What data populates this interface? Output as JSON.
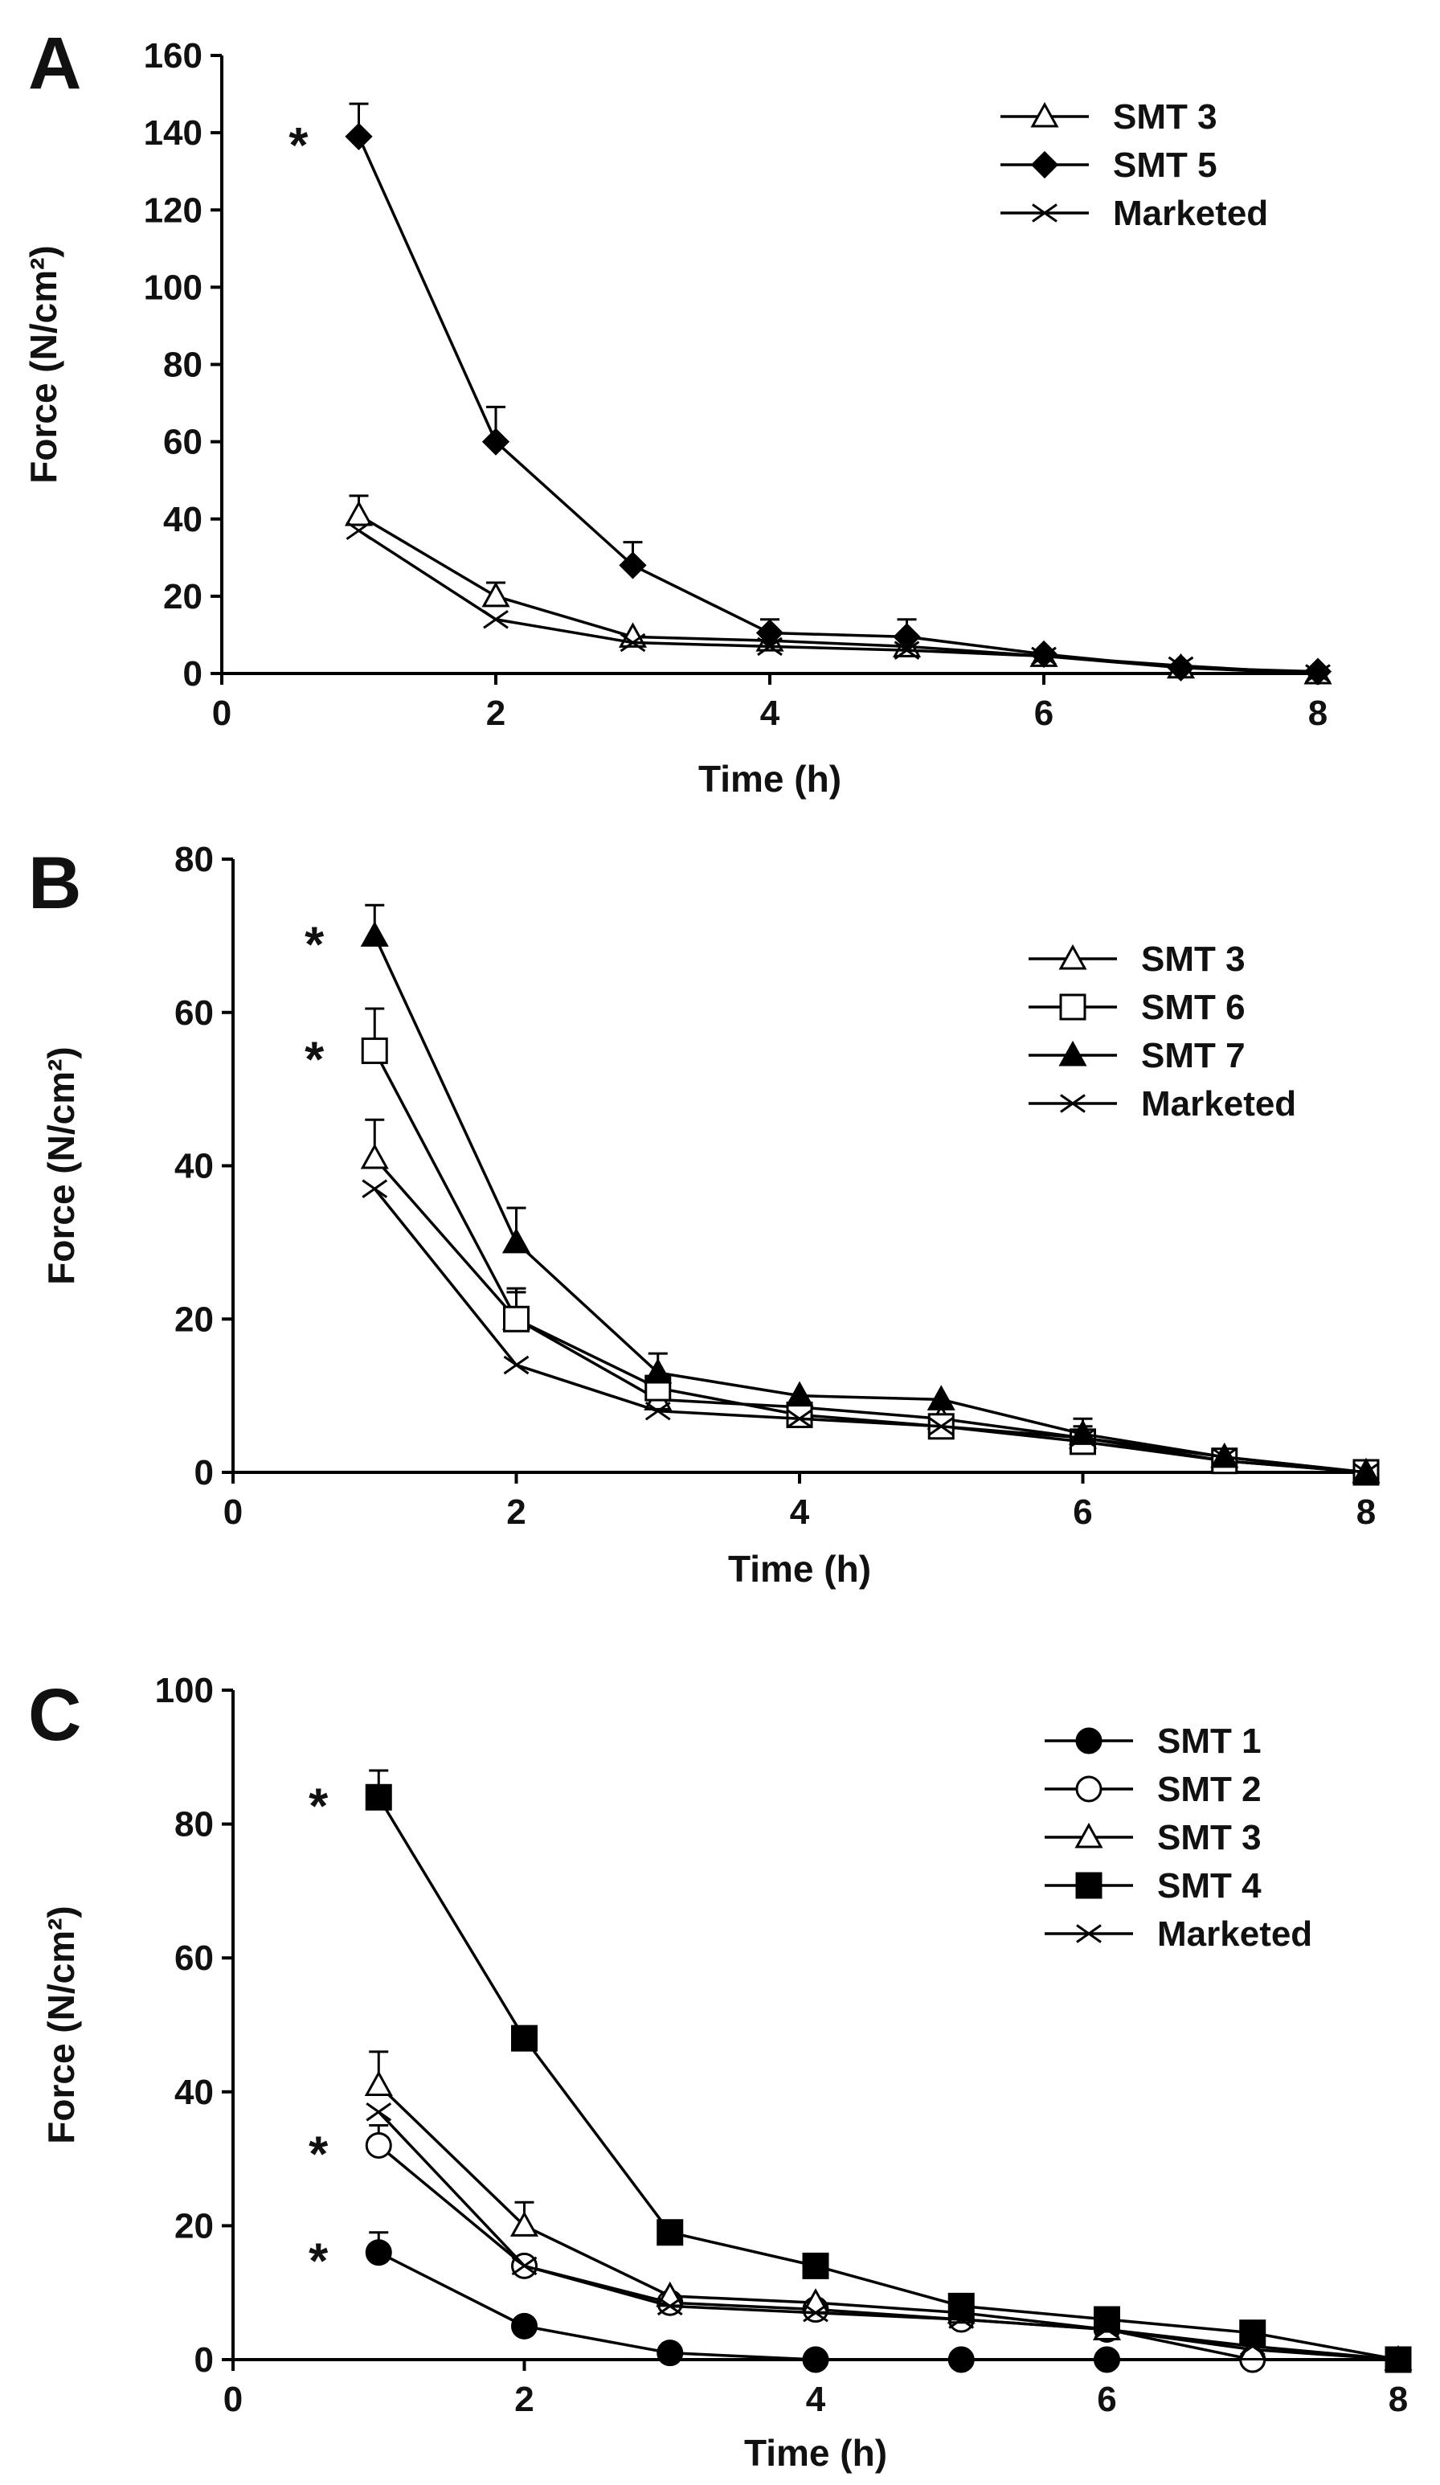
{
  "chart_data": [
    {
      "type": "line",
      "panel_label": "A",
      "xlabel": "Time (h)",
      "ylabel": "Force (N/cm²)",
      "xlim": [
        0,
        8
      ],
      "ylim": [
        0,
        160
      ],
      "x_ticks": [
        0,
        2,
        4,
        6,
        8
      ],
      "y_ticks": [
        0,
        20,
        40,
        60,
        80,
        100,
        120,
        140,
        160
      ],
      "grid": false,
      "legend_position": "top-right",
      "series": [
        {
          "name": "SMT 3",
          "marker": "triangle-open",
          "x": [
            1,
            2,
            3,
            4,
            5,
            6,
            7,
            8
          ],
          "y": [
            41,
            20,
            9.5,
            8.5,
            7,
            4.5,
            1.5,
            0
          ],
          "err": [
            5,
            3.5,
            0,
            0,
            0,
            0,
            0,
            0
          ]
        },
        {
          "name": "SMT 5",
          "marker": "diamond-filled",
          "x": [
            1,
            2,
            3,
            4,
            5,
            6,
            7,
            8
          ],
          "y": [
            139,
            60,
            28,
            10.5,
            9.5,
            5,
            1.5,
            0.5
          ],
          "err": [
            8.5,
            9,
            6,
            3.5,
            4.5,
            0,
            0,
            0
          ]
        },
        {
          "name": "Marketed",
          "marker": "x",
          "x": [
            1,
            2,
            3,
            4,
            5,
            6,
            7,
            8
          ],
          "y": [
            37,
            14,
            8,
            7,
            6,
            4.5,
            2,
            0
          ],
          "err": [
            0,
            0,
            0,
            0,
            0,
            0,
            0,
            0
          ]
        }
      ],
      "annotations": [
        {
          "text": "*",
          "x": 1,
          "y": 139
        }
      ]
    },
    {
      "type": "line",
      "panel_label": "B",
      "xlabel": "Time (h)",
      "ylabel": "Force (N/cm²)",
      "xlim": [
        0,
        8
      ],
      "ylim": [
        0,
        80
      ],
      "x_ticks": [
        0,
        2,
        4,
        6,
        8
      ],
      "y_ticks": [
        0,
        20,
        40,
        60,
        80
      ],
      "grid": false,
      "legend_position": "top-right",
      "series": [
        {
          "name": "SMT 3",
          "marker": "triangle-open",
          "x": [
            1,
            2,
            3,
            4,
            5,
            6,
            7,
            8
          ],
          "y": [
            41,
            20,
            9.5,
            8.5,
            7,
            4.5,
            1.5,
            0
          ],
          "err": [
            5,
            3.5,
            0,
            0,
            0,
            0,
            0,
            0
          ]
        },
        {
          "name": "SMT 6",
          "marker": "square-open",
          "x": [
            1,
            2,
            3,
            4,
            5,
            6,
            7,
            8
          ],
          "y": [
            55,
            20,
            11,
            7.5,
            6,
            4,
            1.5,
            0
          ],
          "err": [
            5.5,
            4,
            0,
            0,
            0,
            2,
            0,
            0
          ]
        },
        {
          "name": "SMT 7",
          "marker": "triangle-filled",
          "x": [
            1,
            2,
            3,
            4,
            5,
            6,
            7,
            8
          ],
          "y": [
            70,
            30,
            13,
            10,
            9.5,
            5,
            2,
            0
          ],
          "err": [
            4,
            4.5,
            2.5,
            0,
            0,
            2,
            0,
            0
          ]
        },
        {
          "name": "Marketed",
          "marker": "x",
          "x": [
            1,
            2,
            3,
            4,
            5,
            6,
            7,
            8
          ],
          "y": [
            37,
            14,
            8,
            7,
            6,
            4.5,
            2,
            0
          ],
          "err": [
            0,
            0,
            0,
            0,
            0,
            0,
            0,
            0
          ]
        }
      ],
      "annotations": [
        {
          "text": "*",
          "x": 1,
          "y": 70
        },
        {
          "text": "*",
          "x": 1,
          "y": 55
        }
      ]
    },
    {
      "type": "line",
      "panel_label": "C",
      "xlabel": "Time (h)",
      "ylabel": "Force (N/cm²)",
      "xlim": [
        0,
        8
      ],
      "ylim": [
        0,
        100
      ],
      "x_ticks": [
        0,
        2,
        4,
        6,
        8
      ],
      "y_ticks": [
        0,
        20,
        40,
        60,
        80,
        100
      ],
      "grid": false,
      "legend_position": "top-right",
      "series": [
        {
          "name": "SMT 1",
          "marker": "circle-filled",
          "x": [
            1,
            2,
            3,
            4,
            5,
            6,
            7,
            8
          ],
          "y": [
            16,
            5,
            1,
            0,
            0,
            0,
            0,
            0
          ],
          "err": [
            3,
            0,
            0,
            0,
            0,
            0,
            0,
            0
          ]
        },
        {
          "name": "SMT 2",
          "marker": "circle-open",
          "x": [
            1,
            2,
            3,
            4,
            5,
            6,
            7,
            8
          ],
          "y": [
            32,
            14,
            8.5,
            7.5,
            6,
            4.5,
            0,
            0
          ],
          "err": [
            3,
            0,
            0,
            0,
            0,
            0,
            0,
            0
          ]
        },
        {
          "name": "SMT 3",
          "marker": "triangle-open",
          "x": [
            1,
            2,
            3,
            4,
            5,
            6,
            7,
            8
          ],
          "y": [
            41,
            20,
            9.5,
            8.5,
            7,
            4.5,
            1.5,
            0
          ],
          "err": [
            5,
            3.5,
            0,
            0,
            0,
            0,
            0,
            0
          ]
        },
        {
          "name": "SMT 4",
          "marker": "square-filled",
          "x": [
            1,
            2,
            3,
            4,
            5,
            6,
            7,
            8
          ],
          "y": [
            84,
            48,
            19,
            14,
            8,
            6,
            4,
            0
          ],
          "err": [
            4,
            0,
            0,
            0,
            0,
            0,
            0,
            0
          ]
        },
        {
          "name": "Marketed",
          "marker": "x",
          "x": [
            1,
            2,
            3,
            4,
            5,
            6,
            7,
            8
          ],
          "y": [
            37,
            14,
            8,
            7,
            6,
            4.5,
            2,
            0
          ],
          "err": [
            0,
            0,
            0,
            0,
            0,
            0,
            0,
            0
          ]
        }
      ],
      "annotations": [
        {
          "text": "*",
          "x": 1,
          "y": 84
        },
        {
          "text": "*",
          "x": 1,
          "y": 32
        },
        {
          "text": "*",
          "x": 1,
          "y": 16
        }
      ]
    }
  ]
}
